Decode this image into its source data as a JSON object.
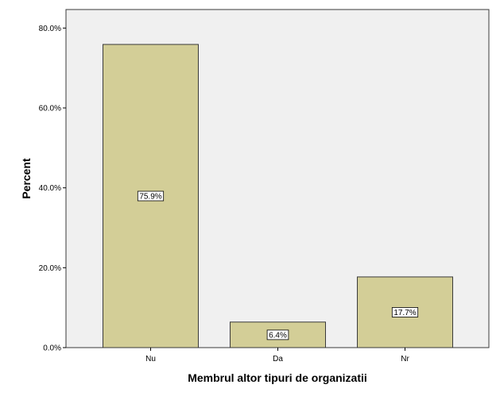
{
  "chart_data": {
    "type": "bar",
    "categories": [
      "Nu",
      "Da",
      "Nr"
    ],
    "values": [
      75.9,
      6.4,
      17.7
    ],
    "data_labels": [
      "75.9%",
      "6.4%",
      "17.7%"
    ],
    "xlabel": "Membrul altor tipuri de organizatii",
    "ylabel": "Percent",
    "ylim": [
      0,
      80
    ],
    "yticks": [
      0,
      20,
      40,
      60,
      80
    ],
    "ytick_labels": [
      "0.0%",
      "20.0%",
      "40.0%",
      "60.0%",
      "80.0%"
    ],
    "grid": false,
    "legend": "none",
    "colors": {
      "bar_fill": "#d3ce97",
      "bar_stroke": "#3a3a3a",
      "plot_background": "#f0f0f0",
      "frame": "#3a3a3a"
    }
  }
}
